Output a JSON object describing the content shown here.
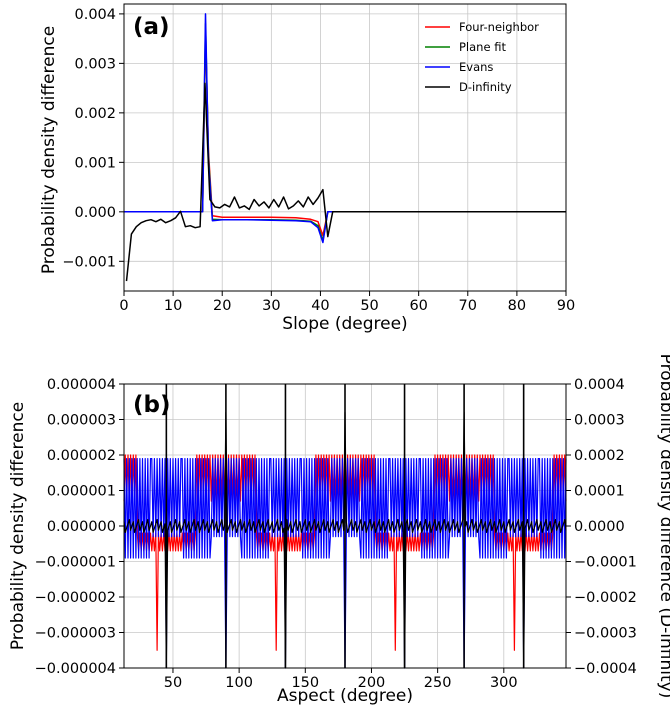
{
  "chart_data": [
    {
      "type": "line",
      "panel_label": "(a)",
      "xlabel": "Slope (degree)",
      "ylabel": "Probability density difference",
      "xlim": [
        0,
        90
      ],
      "ylim": [
        -0.0016,
        0.0042
      ],
      "xticks": [
        0,
        10,
        20,
        30,
        40,
        50,
        60,
        70,
        80,
        90
      ],
      "yticks": [
        -0.001,
        0.0,
        0.001,
        0.002,
        0.003,
        0.004
      ],
      "ytick_labels": [
        "−0.001",
        "0.000",
        "0.001",
        "0.002",
        "0.003",
        "0.004"
      ],
      "grid": true,
      "legend_position": "top-right",
      "series": [
        {
          "name": "Four-neighbor",
          "color": "#ff0000",
          "x": [
            0,
            15,
            16,
            16.6,
            17.2,
            18,
            20,
            25,
            30,
            35,
            38,
            39.5,
            40.5,
            41.5,
            90
          ],
          "y": [
            0,
            0,
            0,
            0.0036,
            0.0012,
            -8e-05,
            -0.00011,
            -0.00011,
            -0.00011,
            -0.00012,
            -0.00015,
            -0.0002,
            -0.00048,
            0,
            0
          ]
        },
        {
          "name": "Plane fit",
          "color": "#008000",
          "x": [
            0,
            15,
            16,
            16.6,
            17.2,
            18,
            20,
            25,
            30,
            35,
            38,
            39.5,
            40.5,
            41.5,
            90
          ],
          "y": [
            0,
            0,
            0,
            0.0038,
            0.0011,
            -0.00015,
            -0.00016,
            -0.00016,
            -0.00016,
            -0.00017,
            -0.00019,
            -0.00028,
            -0.00058,
            0,
            0
          ]
        },
        {
          "name": "Evans",
          "color": "#0000ff",
          "x": [
            0,
            15,
            16,
            16.6,
            17.2,
            18,
            20,
            25,
            30,
            35,
            38,
            39.5,
            40.5,
            41.5,
            90
          ],
          "y": [
            0,
            0,
            0,
            0.004,
            0.001,
            -0.00018,
            -0.00016,
            -0.00016,
            -0.00017,
            -0.00018,
            -0.0002,
            -0.00032,
            -0.00062,
            0,
            0
          ]
        },
        {
          "name": "D-infinity",
          "color": "#000000",
          "x": [
            0.5,
            1.5,
            2.5,
            3.5,
            4.5,
            5.5,
            6.5,
            7.5,
            8.5,
            9.5,
            10.5,
            11.5,
            12.5,
            13.5,
            14.5,
            15.5,
            16.5,
            17.5,
            18.5,
            19.5,
            20.5,
            21.5,
            22.5,
            23.5,
            24.5,
            25.5,
            26.5,
            27.5,
            28.5,
            29.5,
            30.5,
            31.5,
            32.5,
            33.5,
            34.5,
            35.5,
            36.5,
            37.5,
            38.5,
            39.5,
            40.5,
            41.5,
            42.5,
            50,
            60,
            70,
            80,
            90
          ],
          "y": [
            -0.0014,
            -0.00045,
            -0.0003,
            -0.00022,
            -0.00018,
            -0.00016,
            -0.0002,
            -0.00015,
            -0.00022,
            -0.00018,
            -0.00012,
            1e-05,
            -0.0003,
            -0.00028,
            -0.00032,
            -0.0003,
            0.0026,
            0.00025,
            0.0001,
            8e-05,
            0.00015,
            0.0001,
            0.0003,
            8e-05,
            0.00012,
            5e-05,
            0.00025,
            0.00012,
            0.0002,
            8e-05,
            0.00025,
            0.0001,
            0.0003,
            6e-05,
            0.00012,
            0.00022,
            0.0001,
            0.0003,
            0.00015,
            0.00028,
            0.00045,
            -0.0005,
            0,
            0,
            0,
            0,
            0,
            0
          ]
        }
      ]
    },
    {
      "type": "line",
      "panel_label": "(b)",
      "xlabel": "Aspect (degree)",
      "ylabel": "Probability density difference",
      "ylabel_right": "Probability density difference (D-infinity)",
      "xlim": [
        13,
        347
      ],
      "ylim": [
        -4e-06,
        4e-06
      ],
      "ylim_right": [
        -0.0004,
        0.0004
      ],
      "xticks": [
        50,
        100,
        150,
        200,
        250,
        300
      ],
      "yticks": [
        -4e-06,
        -3e-06,
        -2e-06,
        -1e-06,
        0,
        1e-06,
        2e-06,
        3e-06,
        4e-06
      ],
      "ytick_labels": [
        "−0.000004",
        "−0.000003",
        "−0.000002",
        "−0.000001",
        "0.000000",
        "0.000001",
        "0.000002",
        "0.000003",
        "0.000004"
      ],
      "ytick_labels_right": [
        "−0.0004",
        "−0.0003",
        "−0.0002",
        "−0.0001",
        "0.0000",
        "0.0001",
        "0.0002",
        "0.0003",
        "0.0004"
      ],
      "grid": true,
      "series": [
        {
          "name": "Four-neighbor",
          "color": "#ff0000",
          "pattern": "oscillating between about -0.0000010 and 0.0000020 with base level near +0.0000006, spikes down to -0.0000035 near 38, 128, 218, 308 degrees"
        },
        {
          "name": "Evans",
          "color": "#0000ff",
          "pattern": "oscillating between about -0.0000010 and 0.0000019, dips to -0.0000040 near 45, 90, 135, 180, 225, 270, 315 degrees"
        },
        {
          "name": "D-infinity",
          "color": "#000000",
          "axis": "right",
          "pattern": "near 0.0000 with spikes near 45, 90, 135, 180, 225, 270, 315 degrees"
        }
      ]
    }
  ]
}
